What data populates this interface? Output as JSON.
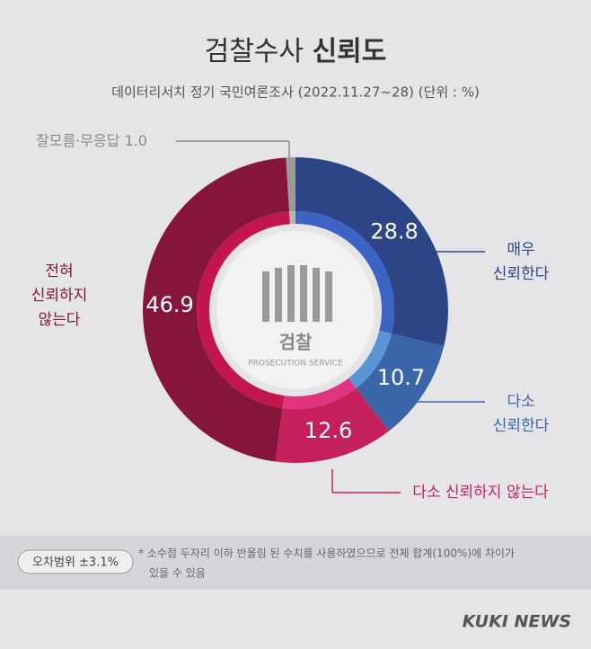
{
  "chart_data": {
    "type": "pie",
    "title": "검찰수사",
    "title_bold": "신뢰도",
    "subtitle": "데이터리서치 정기 국민여론조사 (2022.11.27~28)  (단위 : %)",
    "categories": [
      [
        "매우",
        "신뢰한다"
      ],
      [
        "다소",
        "신뢰한다"
      ],
      [
        "다소 신뢰하지 않는다"
      ],
      [
        "전혀",
        "신뢰하지",
        "않는다"
      ],
      [
        "잘모름·무응답"
      ]
    ],
    "values": [
      28.8,
      10.7,
      12.6,
      46.9,
      1.0
    ],
    "value_labels": [
      "28.8",
      "10.7",
      "12.6",
      "46.9",
      "1.0"
    ],
    "colors": [
      "#2d4487",
      "#3a65a8",
      "#c4215c",
      "#85153a",
      "#9a9a9a"
    ],
    "inner_colors": [
      "#3d63c4",
      "#5a94d4",
      "#e0347c",
      "#c2174e",
      "#b5b5b5"
    ],
    "logo": {
      "text": "검찰",
      "subtext": "PROSECUTION SERVICE"
    },
    "margin_of_error": "오차범위 ±3.1%",
    "note": [
      "* 소수점 두자리 이하 반올림 된 수치를 사용하였으므로 전체 합계(100%)에 차이가",
      "있을 수 있음"
    ],
    "source": "KUKI NEWS"
  }
}
